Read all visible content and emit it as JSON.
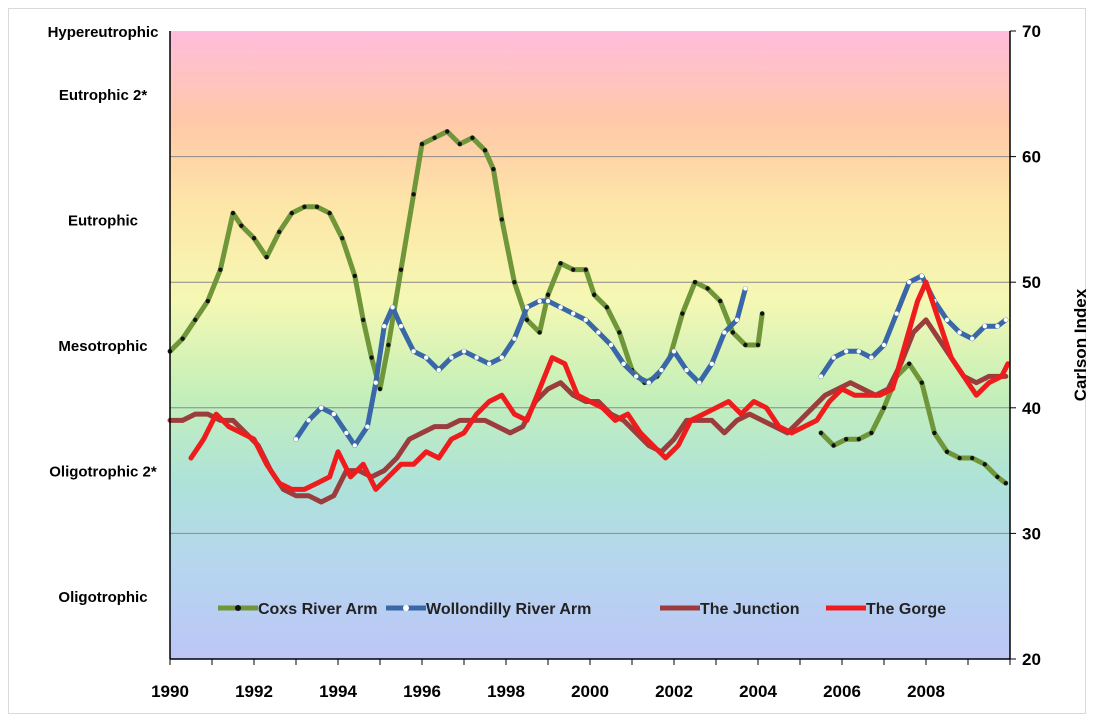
{
  "chart_data": {
    "type": "line",
    "title": "",
    "xlabel": "",
    "ylabel": "Carlson Index",
    "xlim": [
      1990,
      2010
    ],
    "ylim": [
      20,
      70
    ],
    "x_ticks": [
      "1990",
      "1992",
      "1994",
      "1996",
      "1998",
      "2000",
      "2002",
      "2004",
      "2006",
      "2008"
    ],
    "y_ticks": [
      "20",
      "30",
      "40",
      "50",
      "60",
      "70"
    ],
    "grid": true,
    "legend_position": "bottom-inside",
    "trophic_categories": [
      {
        "label": "Hypereutrophic",
        "y": 70
      },
      {
        "label": "Eutrophic 2*",
        "y": 65
      },
      {
        "label": "Eutrophic",
        "y": 55
      },
      {
        "label": "Mesotrophic",
        "y": 45
      },
      {
        "label": "Oligotrophic 2*",
        "y": 35
      },
      {
        "label": "Oligotrophic",
        "y": 25
      }
    ],
    "background_gradient": [
      "#ffbddc",
      "#ffc8a8",
      "#fde7a8",
      "#f5f8b4",
      "#c6f0b8",
      "#aee3d8",
      "#b6d5ef",
      "#bcc6f7"
    ],
    "series": [
      {
        "name": "Coxs River Arm",
        "color": "#70963a",
        "marker_color": "#111111",
        "segments": [
          {
            "x": [
              1990.0,
              1990.3,
              1990.6,
              1990.9,
              1991.2,
              1991.5,
              1991.7,
              1992.0,
              1992.3,
              1992.6,
              1992.9,
              1993.2,
              1993.5,
              1993.8,
              1994.1,
              1994.4,
              1994.6,
              1994.8,
              1995.0,
              1995.2,
              1995.5,
              1995.8,
              1996.0,
              1996.3,
              1996.6,
              1996.9,
              1997.2,
              1997.5,
              1997.7,
              1997.9,
              1998.2,
              1998.5,
              1998.8,
              1999.0,
              1999.3,
              1999.6,
              1999.9,
              2000.1,
              2000.4,
              2000.7,
              2001.0,
              2001.3,
              2001.6,
              2001.9,
              2002.2,
              2002.5,
              2002.8,
              2003.1,
              2003.4,
              2003.7,
              2004.0,
              2004.1
            ],
            "y": [
              44.5,
              45.5,
              47.0,
              48.5,
              51.0,
              55.5,
              54.5,
              53.5,
              52.0,
              54.0,
              55.5,
              56.0,
              56.0,
              55.5,
              53.5,
              50.5,
              47.0,
              44.0,
              41.5,
              45.0,
              51.0,
              57.0,
              61.0,
              61.5,
              62.0,
              61.0,
              61.5,
              60.5,
              59.0,
              55.0,
              50.0,
              47.0,
              46.0,
              49.0,
              51.5,
              51.0,
              51.0,
              49.0,
              48.0,
              46.0,
              43.0,
              42.0,
              42.5,
              44.0,
              47.5,
              50.0,
              49.5,
              48.5,
              46.0,
              45.0,
              45.0,
              47.5
            ]
          },
          {
            "x": [
              2005.5,
              2005.8,
              2006.1,
              2006.4,
              2006.7,
              2007.0,
              2007.3,
              2007.6,
              2007.9,
              2008.2,
              2008.5,
              2008.8,
              2009.1,
              2009.4,
              2009.7,
              2009.9
            ],
            "y": [
              38.0,
              37.0,
              37.5,
              37.5,
              38.0,
              40.0,
              42.5,
              43.5,
              42.0,
              38.0,
              36.5,
              36.0,
              36.0,
              35.5,
              34.5,
              34.0
            ]
          }
        ]
      },
      {
        "name": "Wollondilly River Arm",
        "color": "#3a67a8",
        "marker_color": "#ffffff",
        "segments": [
          {
            "x": [
              1993.0,
              1993.3,
              1993.6,
              1993.9,
              1994.2,
              1994.4,
              1994.7,
              1994.9,
              1995.1,
              1995.3,
              1995.5,
              1995.8,
              1996.1,
              1996.4,
              1996.7,
              1997.0,
              1997.3,
              1997.6,
              1997.9,
              1998.2,
              1998.5,
              1998.8,
              1999.0,
              1999.3,
              1999.6,
              1999.9,
              2000.2,
              2000.5,
              2000.8,
              2001.1,
              2001.4,
              2001.7,
              2002.0,
              2002.3,
              2002.6,
              2002.9,
              2003.2,
              2003.5,
              2003.7
            ],
            "y": [
              37.5,
              39.0,
              40.0,
              39.5,
              38.0,
              37.0,
              38.5,
              42.0,
              46.5,
              48.0,
              46.5,
              44.5,
              44.0,
              43.0,
              44.0,
              44.5,
              44.0,
              43.5,
              44.0,
              45.5,
              48.0,
              48.5,
              48.5,
              48.0,
              47.5,
              47.0,
              46.0,
              45.0,
              43.5,
              42.5,
              42.0,
              43.0,
              44.5,
              43.0,
              42.0,
              43.5,
              46.0,
              47.0,
              49.5
            ]
          },
          {
            "x": [
              2005.5,
              2005.8,
              2006.1,
              2006.4,
              2006.7,
              2007.0,
              2007.3,
              2007.6,
              2007.9,
              2008.2,
              2008.5,
              2008.8,
              2009.1,
              2009.4,
              2009.7,
              2009.9
            ],
            "y": [
              42.5,
              44.0,
              44.5,
              44.5,
              44.0,
              45.0,
              47.5,
              50.0,
              50.5,
              48.5,
              47.0,
              46.0,
              45.5,
              46.5,
              46.5,
              47.0
            ]
          }
        ]
      },
      {
        "name": "The Junction",
        "color": "#9b3d3d",
        "marker_color": "",
        "segments": [
          {
            "x": [
              1990.0,
              1990.3,
              1990.6,
              1990.9,
              1991.2,
              1991.5,
              1991.8,
              1992.1,
              1992.4,
              1992.7,
              1993.0,
              1993.3,
              1993.6,
              1993.9,
              1994.2,
              1994.5,
              1994.8,
              1995.1,
              1995.4,
              1995.7,
              1996.0,
              1996.3,
              1996.6,
              1996.9,
              1997.2,
              1997.5,
              1997.8,
              1998.1,
              1998.4,
              1998.7,
              1999.0,
              1999.3,
              1999.6,
              1999.9,
              2000.2,
              2000.5,
              2000.8,
              2001.1,
              2001.4,
              2001.7,
              2002.0,
              2002.3,
              2002.6,
              2002.9,
              2003.2,
              2003.5,
              2003.8,
              2004.1,
              2004.4,
              2004.7,
              2005.0,
              2005.3,
              2005.6,
              2005.9,
              2006.2,
              2006.5,
              2006.8,
              2007.1,
              2007.4,
              2007.7,
              2008.0,
              2008.3,
              2008.6,
              2008.9,
              2009.2,
              2009.5,
              2009.9
            ],
            "y": [
              39.0,
              39.0,
              39.5,
              39.5,
              39.0,
              39.0,
              38.0,
              37.0,
              35.0,
              33.5,
              33.0,
              33.0,
              32.5,
              33.0,
              35.0,
              35.0,
              34.5,
              35.0,
              36.0,
              37.5,
              38.0,
              38.5,
              38.5,
              39.0,
              39.0,
              39.0,
              38.5,
              38.0,
              38.5,
              40.5,
              41.5,
              42.0,
              41.0,
              40.5,
              40.5,
              39.5,
              39.0,
              38.0,
              37.0,
              36.5,
              37.5,
              39.0,
              39.0,
              39.0,
              38.0,
              39.0,
              39.5,
              39.0,
              38.5,
              38.0,
              39.0,
              40.0,
              41.0,
              41.5,
              42.0,
              41.5,
              41.0,
              41.5,
              43.5,
              46.0,
              47.0,
              45.5,
              44.0,
              42.5,
              42.0,
              42.5,
              42.5
            ]
          }
        ]
      },
      {
        "name": "The Gorge",
        "color": "#ee1c1c",
        "marker_color": "",
        "segments": [
          {
            "x": [
              1990.5,
              1990.8,
              1991.1,
              1991.4,
              1991.7,
              1992.0,
              1992.3,
              1992.6,
              1992.9,
              1993.2,
              1993.5,
              1993.8,
              1994.0,
              1994.3,
              1994.6,
              1994.9,
              1995.2,
              1995.5,
              1995.8,
              1996.1,
              1996.4,
              1996.7,
              1997.0,
              1997.3,
              1997.6,
              1997.9,
              1998.2,
              1998.5,
              1998.8,
              1999.1,
              1999.4,
              1999.7,
              2000.0,
              2000.3,
              2000.6,
              2000.9,
              2001.2,
              2001.5,
              2001.8,
              2002.1,
              2002.4,
              2002.7,
              2003.0,
              2003.3,
              2003.6,
              2003.9,
              2004.2,
              2004.5,
              2004.8,
              2005.1,
              2005.4,
              2005.7,
              2006.0,
              2006.3,
              2006.6,
              2006.9,
              2007.2,
              2007.5,
              2007.8,
              2008.0,
              2008.3,
              2008.6,
              2008.9,
              2009.2,
              2009.5,
              2009.8,
              2009.95
            ],
            "y": [
              36.0,
              37.5,
              39.5,
              38.5,
              38.0,
              37.5,
              35.5,
              34.0,
              33.5,
              33.5,
              34.0,
              34.5,
              36.5,
              34.5,
              35.5,
              33.5,
              34.5,
              35.5,
              35.5,
              36.5,
              36.0,
              37.5,
              38.0,
              39.5,
              40.5,
              41.0,
              39.5,
              39.0,
              41.5,
              44.0,
              43.5,
              41.0,
              40.5,
              40.0,
              39.0,
              39.5,
              38.0,
              37.0,
              36.0,
              37.0,
              39.0,
              39.5,
              40.0,
              40.5,
              39.5,
              40.5,
              40.0,
              38.5,
              38.0,
              38.5,
              39.0,
              40.5,
              41.5,
              41.0,
              41.0,
              41.0,
              41.5,
              45.0,
              48.5,
              50.0,
              47.0,
              44.0,
              42.5,
              41.0,
              42.0,
              42.5,
              43.5
            ]
          }
        ]
      }
    ]
  }
}
